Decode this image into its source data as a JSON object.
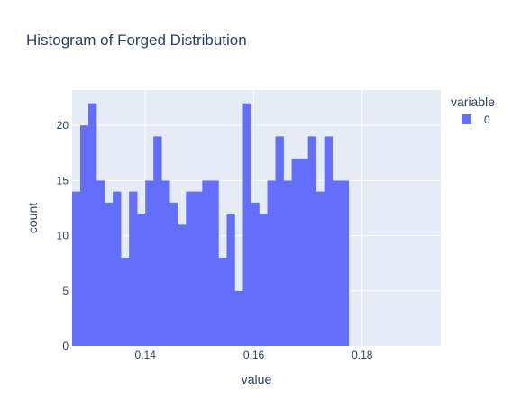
{
  "chart_data": {
    "type": "bar",
    "title": "Histogram of Forged Distribution",
    "xlabel": "value",
    "ylabel": "count",
    "bin_start": 0.1265,
    "bin_width": 0.0015,
    "values": [
      14,
      20,
      22,
      15,
      13,
      14,
      8,
      14,
      12,
      15,
      19,
      15,
      13,
      11,
      14,
      14,
      15,
      15,
      8,
      12,
      5,
      22,
      13,
      12,
      15,
      19,
      15,
      17,
      17,
      19,
      14,
      19,
      15,
      15
    ],
    "xlim": [
      0.1265,
      0.1945
    ],
    "ylim": [
      0,
      23.2
    ],
    "x_ticks": [
      0.14,
      0.16,
      0.18
    ],
    "x_tick_labels": [
      "0.14",
      "0.16",
      "0.18"
    ],
    "y_ticks": [
      0,
      5,
      10,
      15,
      20
    ],
    "y_tick_labels": [
      "0",
      "5",
      "10",
      "15",
      "20"
    ],
    "grid": true,
    "legend": {
      "title": "variable",
      "placement": "top-right",
      "entries": [
        {
          "label": "0",
          "color": "#636efa"
        }
      ]
    },
    "colors": {
      "bar": "#636efa",
      "plot_bg": "#e5ecf6",
      "grid": "#ffffff",
      "text": "#2a3f5f"
    }
  }
}
